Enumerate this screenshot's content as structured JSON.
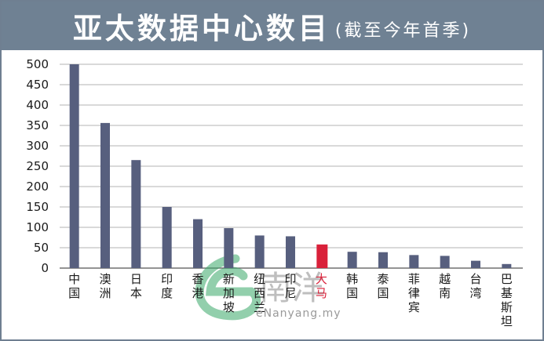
{
  "header": {
    "title": "亚太数据中心数目",
    "subtitle": "(截至今年首季)",
    "background": "#6f8193"
  },
  "watermark": {
    "text": "eNanyang.my",
    "logo_text": "南洋",
    "color": "#3aa86a"
  },
  "chart_data": {
    "type": "bar",
    "title": "亚太数据中心数目",
    "subtitle": "(截至今年首季)",
    "xlabel": "",
    "ylabel": "",
    "ylim": [
      0,
      500
    ],
    "yticks": [
      0,
      50,
      100,
      150,
      200,
      250,
      300,
      350,
      400,
      450,
      500
    ],
    "grid": true,
    "categories": [
      "中国",
      "澳洲",
      "日本",
      "印度",
      "香港",
      "新加坡",
      "纽西兰",
      "印尼",
      "大马",
      "韩国",
      "泰国",
      "菲律宾",
      "越南",
      "台湾",
      "巴基斯坦"
    ],
    "values": [
      500,
      356,
      265,
      150,
      120,
      98,
      80,
      78,
      58,
      40,
      39,
      32,
      30,
      18,
      10
    ],
    "highlight_category": "大马",
    "bar_color": "#575f7e",
    "highlight_color": "#d9213a",
    "label_color": "#1a1a1a",
    "highlight_label_color": "#d9213a"
  }
}
